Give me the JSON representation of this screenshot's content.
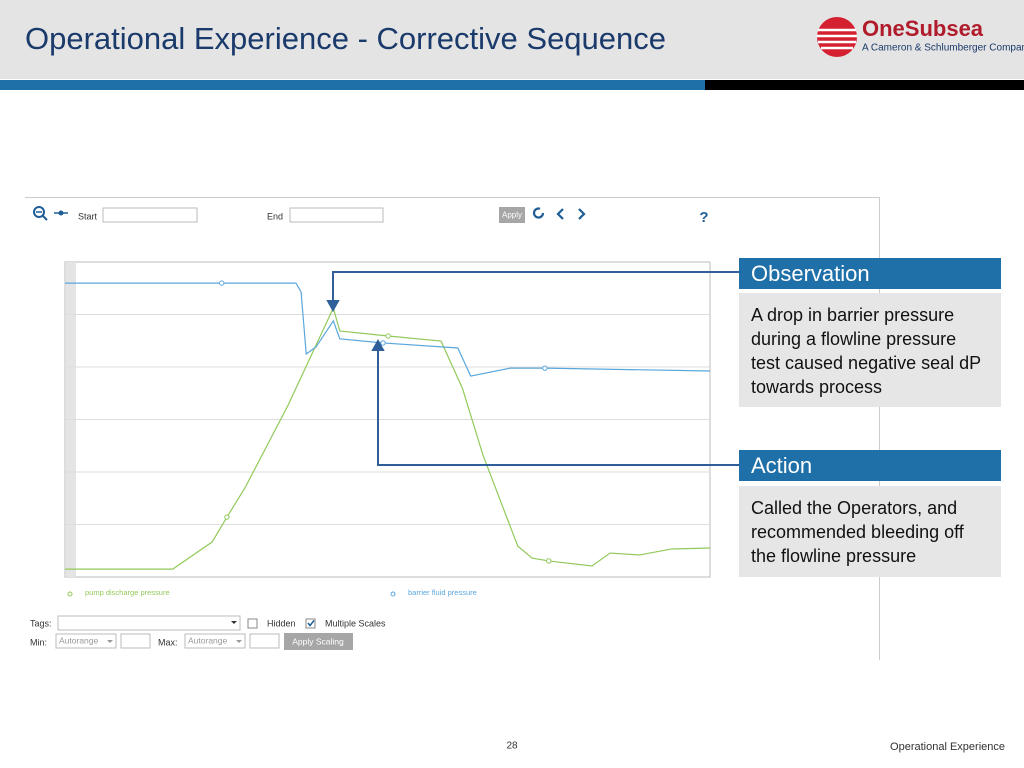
{
  "header": {
    "title": "Operational Experience - Corrective Sequence",
    "logo_name": "OneSubsea",
    "logo_tagline": "A Cameron & Schlumberger Company"
  },
  "toolbar": {
    "start_label": "Start",
    "end_label": "End",
    "apply": "Apply",
    "help": "?"
  },
  "chart_data": {
    "type": "line",
    "xlim": [
      0,
      100
    ],
    "ylim": [
      0,
      100
    ],
    "series": [
      {
        "name": "pump discharge pressure",
        "color": "#92c95a",
        "x": [
          0,
          16.7,
          22.8,
          25.1,
          27.9,
          34.6,
          41.6,
          42.6,
          50.1,
          58.3,
          61.6,
          64.8,
          70.2,
          72.4,
          75.0,
          81.7,
          84.5,
          89.1,
          94.1,
          100
        ],
        "values": [
          2.5,
          2.5,
          11.1,
          19.0,
          28.3,
          54.6,
          85.4,
          78.1,
          76.5,
          74.9,
          60.0,
          38.7,
          9.8,
          6.0,
          5.1,
          3.5,
          7.6,
          7.0,
          8.9,
          9.2
        ]
      },
      {
        "name": "barrier fluid pressure",
        "color": "#5aa7dc",
        "x": [
          0,
          24.3,
          35.8,
          36.6,
          37.4,
          38.9,
          41.6,
          42.6,
          49.3,
          60.9,
          62.9,
          69.0,
          74.4,
          100
        ],
        "values": [
          93.3,
          93.3,
          93.3,
          90.5,
          70.8,
          73.0,
          81.3,
          75.6,
          74.3,
          72.7,
          63.8,
          66.3,
          66.3,
          65.4
        ]
      }
    ]
  },
  "controls": {
    "tags_label": "Tags:",
    "hidden_label": "Hidden",
    "multiple_scales_label": "Multiple Scales",
    "min_label": "Min:",
    "min_value": "Autorange",
    "max_label": "Max:",
    "max_value": "Autorange",
    "apply_scaling": "Apply Scaling"
  },
  "callouts": [
    {
      "title": "Observation",
      "text": "A drop in barrier pressure during a flowline pressure test caused negative seal dP towards process"
    },
    {
      "title": "Action",
      "text": "Called the Operators, and recommended bleeding off the flowline pressure"
    }
  ],
  "footer": {
    "page_number": "28",
    "section": "Operational Experience"
  }
}
